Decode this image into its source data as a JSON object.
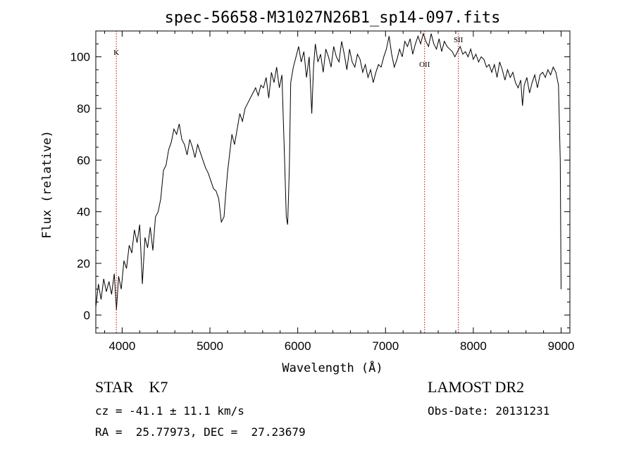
{
  "chart_data": {
    "type": "line",
    "title": "spec-56658-M31027N26B1_sp14-097.fits",
    "xlabel": "Wavelength (Å)",
    "ylabel": "Flux (relative)",
    "xlim": [
      3700,
      9100
    ],
    "ylim": [
      -7,
      110
    ],
    "x_ticks": [
      4000,
      5000,
      6000,
      7000,
      8000,
      9000
    ],
    "y_ticks": [
      0,
      20,
      40,
      60,
      80,
      100
    ],
    "grid": false,
    "line_color": "#000000",
    "marker_color": "#c00000",
    "line_markers": [
      {
        "label": "K",
        "x": 3934
      },
      {
        "label": "OII",
        "x": 7445
      },
      {
        "label": "SII",
        "x": 7830
      }
    ],
    "series": [
      {
        "x": [
          3700,
          3730,
          3760,
          3790,
          3820,
          3850,
          3880,
          3910,
          3935,
          3960,
          3990,
          4020,
          4050,
          4080,
          4110,
          4140,
          4170,
          4200,
          4230,
          4260,
          4290,
          4320,
          4350,
          4380,
          4410,
          4440,
          4470,
          4500,
          4530,
          4560,
          4590,
          4620,
          4650,
          4680,
          4710,
          4740,
          4770,
          4800,
          4830,
          4860,
          4890,
          4920,
          4950,
          4980,
          5010,
          5040,
          5070,
          5100,
          5130,
          5160,
          5180,
          5200,
          5220,
          5250,
          5280,
          5310,
          5340,
          5370,
          5400,
          5430,
          5460,
          5490,
          5520,
          5550,
          5580,
          5610,
          5640,
          5670,
          5700,
          5730,
          5760,
          5790,
          5820,
          5850,
          5870,
          5885,
          5895,
          5905,
          5920,
          5950,
          5980,
          6010,
          6040,
          6070,
          6100,
          6130,
          6160,
          6180,
          6200,
          6230,
          6260,
          6290,
          6320,
          6350,
          6380,
          6410,
          6440,
          6470,
          6500,
          6530,
          6560,
          6590,
          6620,
          6650,
          6680,
          6710,
          6740,
          6770,
          6800,
          6830,
          6860,
          6890,
          6920,
          6950,
          6980,
          7010,
          7040,
          7070,
          7100,
          7130,
          7160,
          7190,
          7220,
          7250,
          7280,
          7310,
          7340,
          7370,
          7400,
          7430,
          7460,
          7490,
          7520,
          7550,
          7580,
          7610,
          7640,
          7670,
          7700,
          7730,
          7760,
          7790,
          7820,
          7850,
          7880,
          7910,
          7940,
          7970,
          8000,
          8030,
          8060,
          8090,
          8120,
          8150,
          8180,
          8210,
          8240,
          8270,
          8300,
          8330,
          8360,
          8390,
          8420,
          8450,
          8480,
          8510,
          8540,
          8560,
          8580,
          8610,
          8640,
          8670,
          8700,
          8730,
          8760,
          8790,
          8820,
          8850,
          8880,
          8910,
          8940,
          8970,
          8990,
          9000
        ],
        "y": [
          3,
          12,
          6,
          14,
          9,
          13,
          8,
          16,
          2,
          15,
          10,
          21,
          18,
          27,
          24,
          33,
          28,
          35,
          12,
          30,
          26,
          34,
          25,
          38,
          40,
          45,
          56,
          58,
          64,
          67,
          72,
          70,
          74,
          68,
          66,
          62,
          68,
          65,
          61,
          66,
          63,
          60,
          57,
          55,
          52,
          49,
          48,
          45,
          36,
          38,
          47,
          55,
          61,
          70,
          66,
          72,
          78,
          75,
          80,
          82,
          84,
          86,
          88,
          85,
          89,
          88,
          92,
          84,
          94,
          90,
          96,
          88,
          93,
          60,
          38,
          35,
          46,
          58,
          90,
          96,
          100,
          104,
          98,
          102,
          92,
          100,
          78,
          96,
          105,
          98,
          101,
          94,
          103,
          100,
          96,
          104,
          100,
          98,
          106,
          101,
          95,
          103,
          98,
          96,
          101,
          99,
          94,
          97,
          92,
          95,
          90,
          94,
          97,
          96,
          100,
          103,
          108,
          101,
          96,
          99,
          103,
          100,
          106,
          104,
          107,
          101,
          105,
          108,
          105,
          109,
          106,
          104,
          109,
          105,
          103,
          107,
          102,
          106,
          104,
          103,
          102,
          100,
          102,
          104,
          101,
          102,
          100,
          103,
          99,
          101,
          98,
          100,
          99,
          96,
          97,
          94,
          97,
          92,
          98,
          95,
          91,
          95,
          92,
          94,
          90,
          88,
          91,
          81,
          89,
          92,
          86,
          90,
          93,
          88,
          93,
          94,
          92,
          95,
          93,
          96,
          94,
          89,
          60,
          10
        ]
      }
    ]
  },
  "info": {
    "class_line": "STAR    K7",
    "survey": "LAMOST DR2",
    "cz": "cz = -41.1 ± 11.1 km/s",
    "obs_date": "Obs-Date: 20131231",
    "coords": "RA =  25.77973, DEC =  27.23679"
  }
}
